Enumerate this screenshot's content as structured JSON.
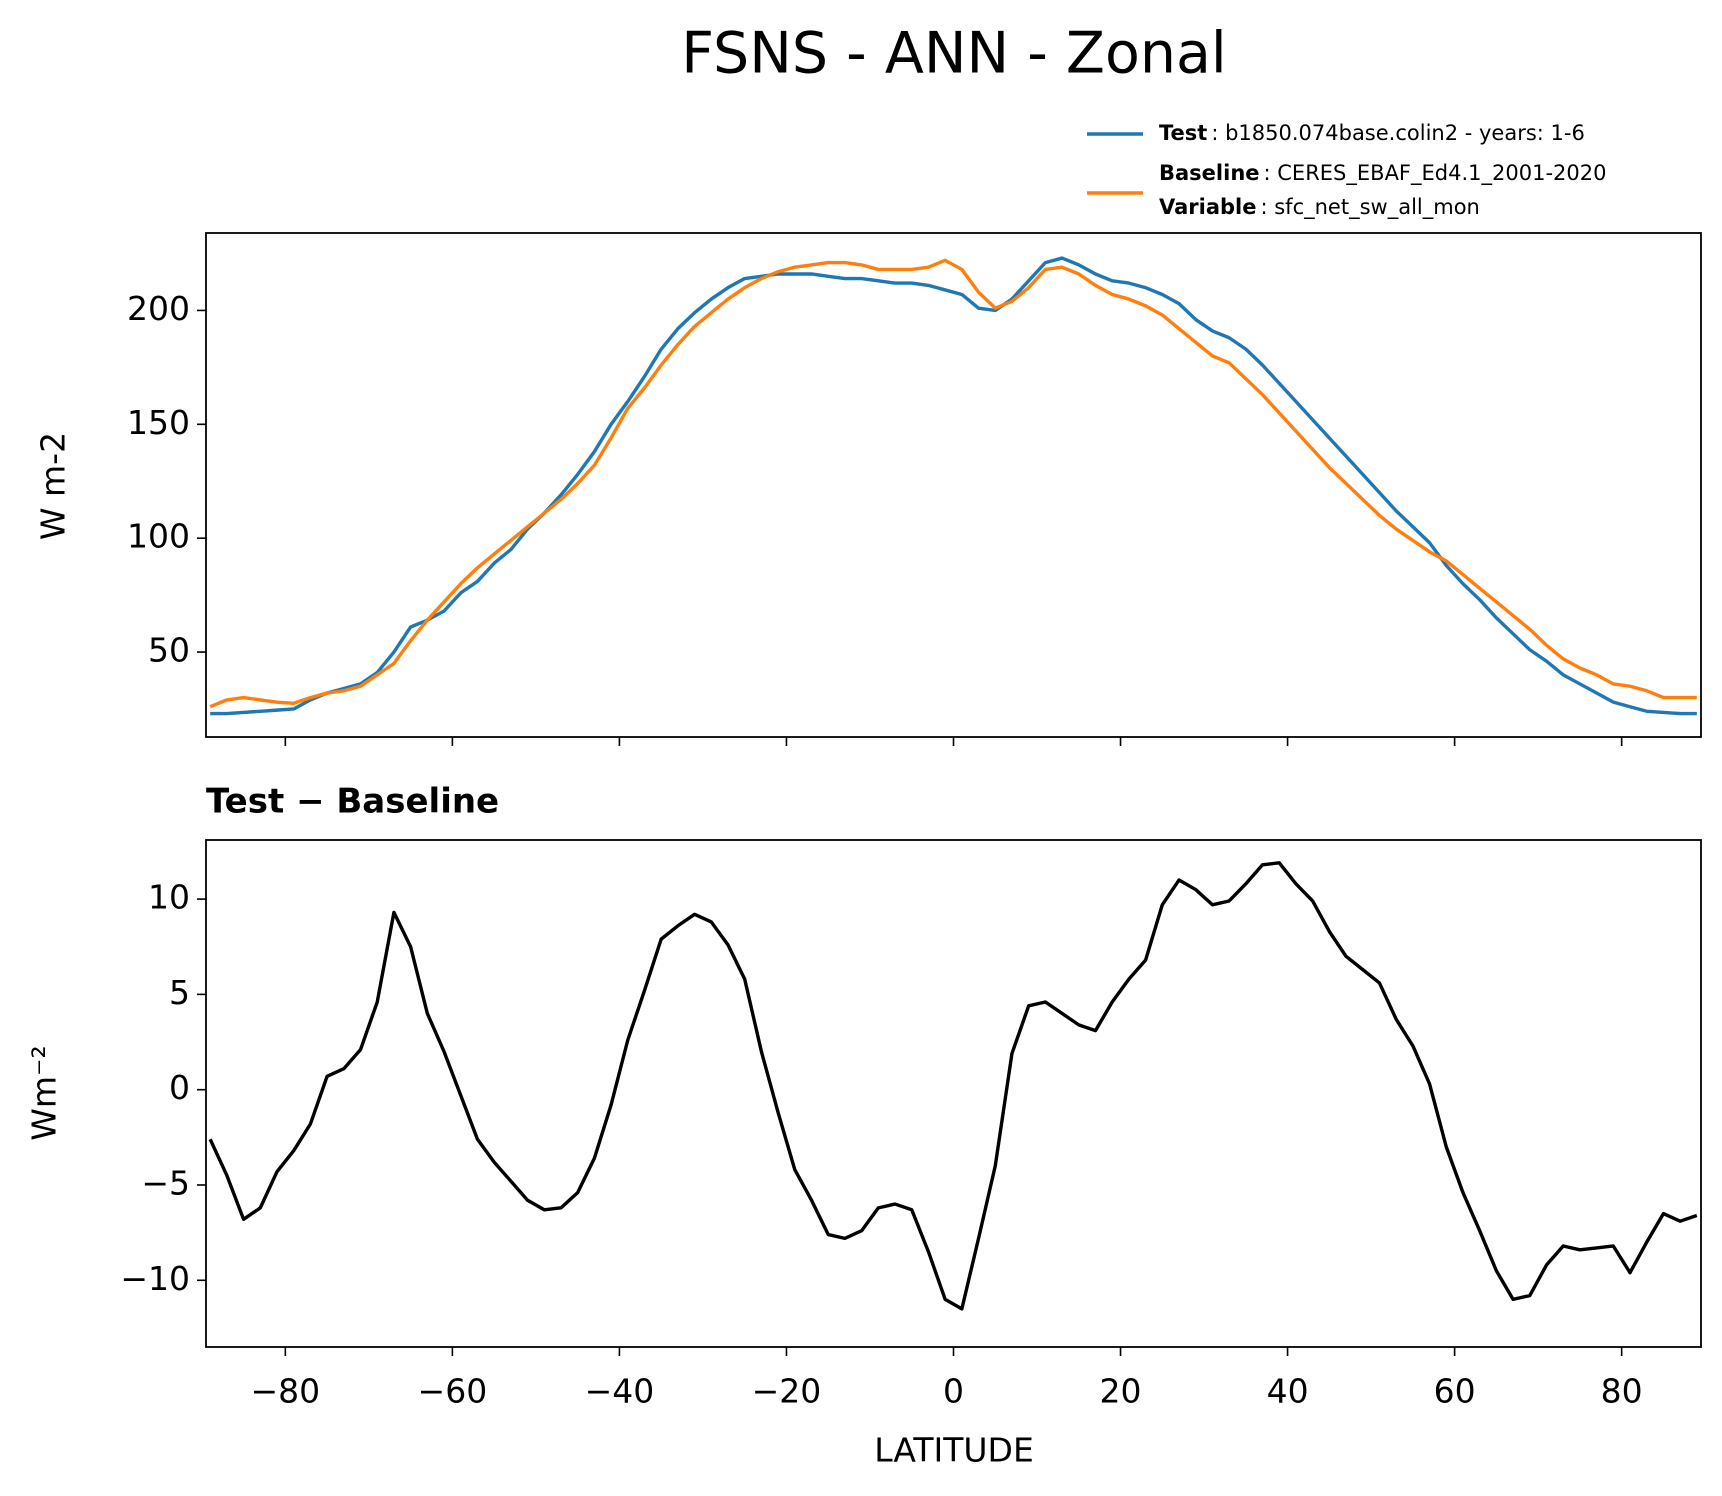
{
  "chart_data": [
    {
      "type": "line",
      "title": "FSNS - ANN - Zonal",
      "ylabel": "W m-2",
      "x": [
        -89,
        -87,
        -85,
        -83,
        -81,
        -79,
        -77,
        -75,
        -73,
        -71,
        -69,
        -67,
        -65,
        -63,
        -61,
        -59,
        -57,
        -55,
        -53,
        -51,
        -49,
        -47,
        -45,
        -43,
        -41,
        -39,
        -37,
        -35,
        -33,
        -31,
        -29,
        -27,
        -25,
        -23,
        -21,
        -19,
        -17,
        -15,
        -13,
        -11,
        -9,
        -7,
        -5,
        -3,
        -1,
        1,
        3,
        5,
        7,
        9,
        11,
        13,
        15,
        17,
        19,
        21,
        23,
        25,
        27,
        29,
        31,
        33,
        35,
        37,
        39,
        41,
        43,
        45,
        47,
        49,
        51,
        53,
        55,
        57,
        59,
        61,
        63,
        65,
        67,
        69,
        71,
        73,
        75,
        77,
        79,
        81,
        83,
        85,
        87,
        89
      ],
      "series": [
        {
          "name": "Test",
          "legend_text": ": b1850.074base.colin2 - years: 1-6",
          "color": "#1f77b4",
          "values": [
            23,
            23,
            23.5,
            24,
            24.5,
            25,
            29,
            32,
            34,
            36,
            41,
            50,
            61,
            64,
            68,
            76,
            81,
            89,
            95,
            104,
            111,
            119,
            128,
            138,
            150,
            160,
            171,
            183,
            192,
            199,
            205,
            210,
            214,
            215,
            216,
            216,
            216,
            215,
            214,
            214,
            213,
            212,
            212,
            211,
            209,
            207,
            201,
            200,
            205,
            213,
            221,
            223,
            220,
            216,
            213,
            212,
            210,
            207,
            203,
            196,
            191,
            188,
            183,
            176,
            168,
            160,
            152,
            144,
            136,
            128,
            120,
            112,
            105,
            98,
            88,
            80,
            73,
            65,
            58,
            51,
            46,
            40,
            36,
            32,
            28,
            26,
            24,
            23.5,
            23,
            23
          ]
        },
        {
          "name": "Baseline",
          "legend_text": ": CERES_EBAF_Ed4.1_2001-2020",
          "legend_extra": {
            "key": "Variable",
            "text": ": sfc_net_sw_all_mon"
          },
          "color": "#ff7f0e",
          "values": [
            26,
            29,
            30,
            29,
            28,
            27.5,
            30,
            32,
            33,
            35,
            40,
            45,
            55,
            64,
            72,
            80,
            87,
            93,
            99,
            105,
            111,
            117,
            124,
            132,
            144,
            157,
            166,
            176,
            185,
            193,
            199,
            205,
            210,
            214,
            217,
            219,
            220,
            221,
            221,
            220,
            218,
            218,
            218,
            219,
            222,
            218,
            208,
            201,
            204,
            210,
            218,
            219,
            216,
            211,
            207,
            205,
            202,
            198,
            192,
            186,
            180,
            177,
            170,
            163,
            155,
            147,
            139,
            131,
            124,
            117,
            110,
            104,
            99,
            94,
            90,
            84,
            78,
            72,
            66,
            60,
            53,
            47,
            43,
            40,
            36,
            35,
            33,
            30,
            30,
            30
          ]
        }
      ],
      "ylim": [
        12.7,
        234
      ],
      "yticks": [
        50,
        100,
        150,
        200
      ]
    },
    {
      "type": "line",
      "title": "Test − Baseline",
      "ylabel": "Wm⁻²",
      "xlabel": "LATITUDE",
      "x": [
        -89,
        -87,
        -85,
        -83,
        -81,
        -79,
        -77,
        -75,
        -73,
        -71,
        -69,
        -67,
        -65,
        -63,
        -61,
        -59,
        -57,
        -55,
        -53,
        -51,
        -49,
        -47,
        -45,
        -43,
        -41,
        -39,
        -37,
        -35,
        -33,
        -31,
        -29,
        -27,
        -25,
        -23,
        -21,
        -19,
        -17,
        -15,
        -13,
        -11,
        -9,
        -7,
        -5,
        -3,
        -1,
        1,
        3,
        5,
        7,
        9,
        11,
        13,
        15,
        17,
        19,
        21,
        23,
        25,
        27,
        29,
        31,
        33,
        35,
        37,
        39,
        41,
        43,
        45,
        47,
        49,
        51,
        53,
        55,
        57,
        59,
        61,
        63,
        65,
        67,
        69,
        71,
        73,
        75,
        77,
        79,
        81,
        83,
        85,
        87,
        89
      ],
      "series": [
        {
          "color": "#000000",
          "values": [
            -2.6,
            -4.5,
            -6.8,
            -6.2,
            -4.3,
            -3.2,
            -1.8,
            0.7,
            1.1,
            2.1,
            4.6,
            9.3,
            7.5,
            4.0,
            2.0,
            -0.3,
            -2.6,
            -3.8,
            -4.8,
            -5.8,
            -6.3,
            -6.2,
            -5.4,
            -3.6,
            -0.8,
            2.6,
            5.2,
            7.9,
            8.6,
            9.2,
            8.8,
            7.6,
            5.8,
            2.0,
            -1.2,
            -4.2,
            -5.8,
            -7.6,
            -7.8,
            -7.4,
            -6.2,
            -6.0,
            -6.3,
            -8.5,
            -11.0,
            -11.5,
            -7.8,
            -4.0,
            1.9,
            4.4,
            4.6,
            4.0,
            3.4,
            3.1,
            4.6,
            5.8,
            6.8,
            9.7,
            11.0,
            10.5,
            9.7,
            9.9,
            10.8,
            11.8,
            11.9,
            10.8,
            9.9,
            8.3,
            7.0,
            6.3,
            5.6,
            3.7,
            2.3,
            0.3,
            -3.0,
            -5.4,
            -7.4,
            -9.5,
            -11.0,
            -10.8,
            -9.2,
            -8.2,
            -8.4,
            -8.3,
            -8.2,
            -9.6,
            -8.0,
            -6.5,
            -6.9,
            -6.6
          ]
        }
      ],
      "xlim": [
        -89.5,
        89.5
      ],
      "ylim": [
        -13.5,
        13.1
      ],
      "xticks": [
        {
          "value": -80,
          "label": "−80"
        },
        {
          "value": -60,
          "label": "−60"
        },
        {
          "value": -40,
          "label": "−40"
        },
        {
          "value": -20,
          "label": "−20"
        },
        0,
        20,
        40,
        60,
        80
      ],
      "yticks": [
        {
          "value": -10,
          "label": "−10"
        },
        {
          "value": -5,
          "label": "−5"
        },
        0,
        5,
        10
      ]
    }
  ]
}
